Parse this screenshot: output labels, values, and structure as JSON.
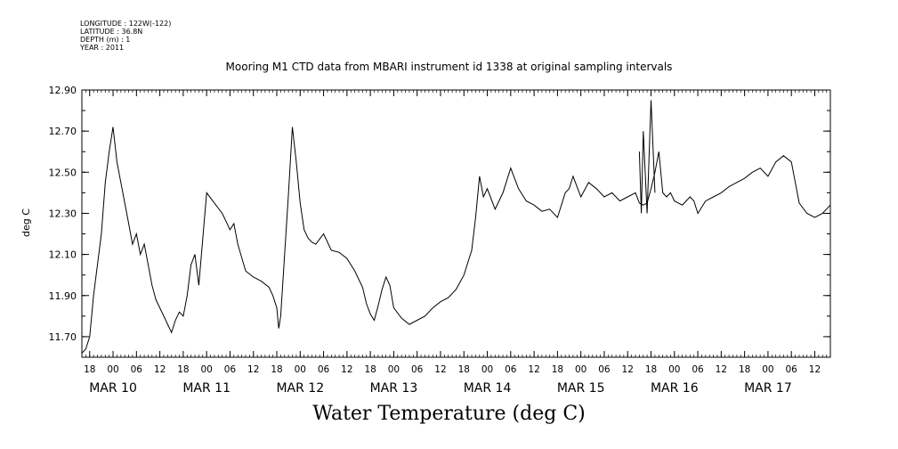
{
  "header": {
    "longitude": "LONGITUDE : 122W(-122)",
    "latitude": "LATITUDE : 36.8N",
    "depth": "DEPTH (m) : 1",
    "year": "YEAR : 2011"
  },
  "chart_data": {
    "type": "line",
    "title": "Mooring M1 CTD data from MBARI instrument id 1338 at original sampling intervals",
    "xlabel": "Water Temperature (deg C)",
    "ylabel": "deg C",
    "ylim": [
      11.6,
      12.9
    ],
    "xlim": [
      "2011-03-09T16:00",
      "2011-03-17T16:00"
    ],
    "yticks": [
      "11.70",
      "11.90",
      "12.10",
      "12.30",
      "12.50",
      "12.70",
      "12.90"
    ],
    "hour_ticks": [
      {
        "t": "2011-03-09T18:00",
        "label": "18"
      },
      {
        "t": "2011-03-10T00:00",
        "label": "00"
      },
      {
        "t": "2011-03-10T06:00",
        "label": "06"
      },
      {
        "t": "2011-03-10T12:00",
        "label": "12"
      },
      {
        "t": "2011-03-10T18:00",
        "label": "18"
      },
      {
        "t": "2011-03-11T00:00",
        "label": "00"
      },
      {
        "t": "2011-03-11T06:00",
        "label": "06"
      },
      {
        "t": "2011-03-11T12:00",
        "label": "12"
      },
      {
        "t": "2011-03-11T18:00",
        "label": "18"
      },
      {
        "t": "2011-03-12T00:00",
        "label": "00"
      },
      {
        "t": "2011-03-12T06:00",
        "label": "06"
      },
      {
        "t": "2011-03-12T12:00",
        "label": "12"
      },
      {
        "t": "2011-03-12T18:00",
        "label": "18"
      },
      {
        "t": "2011-03-13T00:00",
        "label": "00"
      },
      {
        "t": "2011-03-13T06:00",
        "label": "06"
      },
      {
        "t": "2011-03-13T12:00",
        "label": "12"
      },
      {
        "t": "2011-03-13T18:00",
        "label": "18"
      },
      {
        "t": "2011-03-14T00:00",
        "label": "00"
      },
      {
        "t": "2011-03-14T06:00",
        "label": "06"
      },
      {
        "t": "2011-03-14T12:00",
        "label": "12"
      },
      {
        "t": "2011-03-14T18:00",
        "label": "18"
      },
      {
        "t": "2011-03-15T00:00",
        "label": "00"
      },
      {
        "t": "2011-03-15T06:00",
        "label": "06"
      },
      {
        "t": "2011-03-15T12:00",
        "label": "12"
      },
      {
        "t": "2011-03-15T18:00",
        "label": "18"
      },
      {
        "t": "2011-03-16T00:00",
        "label": "00"
      },
      {
        "t": "2011-03-16T06:00",
        "label": "06"
      },
      {
        "t": "2011-03-16T12:00",
        "label": "12"
      },
      {
        "t": "2011-03-16T18:00",
        "label": "18"
      },
      {
        "t": "2011-03-17T00:00",
        "label": "00"
      },
      {
        "t": "2011-03-17T06:00",
        "label": "06"
      },
      {
        "t": "2011-03-17T12:00",
        "label": "12"
      }
    ],
    "date_labels": [
      {
        "t": "2011-03-10T00:00",
        "label": "MAR 10"
      },
      {
        "t": "2011-03-11T00:00",
        "label": "MAR 11"
      },
      {
        "t": "2011-03-12T00:00",
        "label": "MAR 12"
      },
      {
        "t": "2011-03-13T00:00",
        "label": "MAR 13"
      },
      {
        "t": "2011-03-14T00:00",
        "label": "MAR 14"
      },
      {
        "t": "2011-03-15T00:00",
        "label": "MAR 15"
      },
      {
        "t": "2011-03-16T00:00",
        "label": "MAR 16"
      },
      {
        "t": "2011-03-17T00:00",
        "label": "MAR 17"
      }
    ],
    "series": [
      {
        "color": "#000000",
        "x": [
          "2011-03-09T16:00",
          "2011-03-09T17:00",
          "2011-03-09T18:00",
          "2011-03-09T19:00",
          "2011-03-09T20:00",
          "2011-03-09T21:00",
          "2011-03-09T22:00",
          "2011-03-09T23:00",
          "2011-03-10T00:00",
          "2011-03-10T01:00",
          "2011-03-10T02:00",
          "2011-03-10T03:00",
          "2011-03-10T04:00",
          "2011-03-10T05:00",
          "2011-03-10T06:00",
          "2011-03-10T07:00",
          "2011-03-10T08:00",
          "2011-03-10T09:00",
          "2011-03-10T10:00",
          "2011-03-10T11:00",
          "2011-03-10T12:00",
          "2011-03-10T13:00",
          "2011-03-10T14:00",
          "2011-03-10T15:00",
          "2011-03-10T16:00",
          "2011-03-10T17:00",
          "2011-03-10T18:00",
          "2011-03-10T19:00",
          "2011-03-10T20:00",
          "2011-03-10T21:00",
          "2011-03-10T22:00",
          "2011-03-11T00:00",
          "2011-03-11T02:00",
          "2011-03-11T04:00",
          "2011-03-11T05:00",
          "2011-03-11T06:00",
          "2011-03-11T07:00",
          "2011-03-11T08:00",
          "2011-03-11T10:00",
          "2011-03-11T12:00",
          "2011-03-11T14:00",
          "2011-03-11T16:00",
          "2011-03-11T17:00",
          "2011-03-11T18:00",
          "2011-03-11T18:30",
          "2011-03-11T19:00",
          "2011-03-11T20:00",
          "2011-03-11T21:00",
          "2011-03-11T22:00",
          "2011-03-11T23:00",
          "2011-03-12T00:00",
          "2011-03-12T01:00",
          "2011-03-12T02:00",
          "2011-03-12T03:00",
          "2011-03-12T04:00",
          "2011-03-12T06:00",
          "2011-03-12T08:00",
          "2011-03-12T10:00",
          "2011-03-12T12:00",
          "2011-03-12T14:00",
          "2011-03-12T16:00",
          "2011-03-12T17:00",
          "2011-03-12T18:00",
          "2011-03-12T19:00",
          "2011-03-12T20:00",
          "2011-03-12T21:00",
          "2011-03-12T22:00",
          "2011-03-12T23:00",
          "2011-03-13T00:00",
          "2011-03-13T02:00",
          "2011-03-13T04:00",
          "2011-03-13T06:00",
          "2011-03-13T08:00",
          "2011-03-13T10:00",
          "2011-03-13T12:00",
          "2011-03-13T14:00",
          "2011-03-13T16:00",
          "2011-03-13T18:00",
          "2011-03-13T20:00",
          "2011-03-13T21:00",
          "2011-03-13T22:00",
          "2011-03-13T23:00",
          "2011-03-14T00:00",
          "2011-03-14T02:00",
          "2011-03-14T04:00",
          "2011-03-14T06:00",
          "2011-03-14T08:00",
          "2011-03-14T10:00",
          "2011-03-14T12:00",
          "2011-03-14T14:00",
          "2011-03-14T16:00",
          "2011-03-14T18:00",
          "2011-03-14T19:00",
          "2011-03-14T20:00",
          "2011-03-14T21:00",
          "2011-03-14T22:00",
          "2011-03-15T00:00",
          "2011-03-15T02:00",
          "2011-03-15T04:00",
          "2011-03-15T06:00",
          "2011-03-15T08:00",
          "2011-03-15T10:00",
          "2011-03-15T12:00",
          "2011-03-15T14:00",
          "2011-03-15T15:00",
          "2011-03-15T16:00",
          "2011-03-15T17:00",
          "2011-03-15T18:00",
          "2011-03-15T19:00",
          "2011-03-15T20:00",
          "2011-03-15T21:00",
          "2011-03-15T22:00",
          "2011-03-15T23:00",
          "2011-03-16T00:00",
          "2011-03-16T02:00",
          "2011-03-16T04:00",
          "2011-03-16T05:00",
          "2011-03-16T06:00",
          "2011-03-16T07:00",
          "2011-03-16T08:00",
          "2011-03-16T10:00",
          "2011-03-16T12:00",
          "2011-03-16T14:00",
          "2011-03-16T16:00",
          "2011-03-16T18:00",
          "2011-03-16T20:00",
          "2011-03-16T22:00",
          "2011-03-17T00:00",
          "2011-03-17T02:00",
          "2011-03-17T04:00",
          "2011-03-17T06:00",
          "2011-03-17T07:00",
          "2011-03-17T08:00",
          "2011-03-17T10:00",
          "2011-03-17T12:00",
          "2011-03-17T14:00",
          "2011-03-17T15:00",
          "2011-03-17T16:00"
        ],
        "y": [
          11.62,
          11.64,
          11.7,
          11.9,
          12.05,
          12.2,
          12.45,
          12.6,
          12.72,
          12.55,
          12.45,
          12.35,
          12.25,
          12.15,
          12.2,
          12.1,
          12.15,
          12.05,
          11.95,
          11.88,
          11.84,
          11.8,
          11.76,
          11.72,
          11.78,
          11.82,
          11.8,
          11.9,
          12.05,
          12.1,
          11.95,
          12.4,
          12.35,
          12.3,
          12.26,
          12.22,
          12.25,
          12.15,
          12.02,
          11.99,
          11.97,
          11.94,
          11.9,
          11.84,
          11.74,
          11.8,
          12.1,
          12.4,
          12.72,
          12.55,
          12.35,
          12.22,
          12.18,
          12.16,
          12.15,
          12.2,
          12.12,
          12.11,
          12.08,
          12.02,
          11.94,
          11.86,
          11.81,
          11.78,
          11.85,
          11.93,
          11.99,
          11.95,
          11.84,
          11.79,
          11.76,
          11.78,
          11.8,
          11.84,
          11.87,
          11.89,
          11.93,
          12.0,
          12.12,
          12.28,
          12.48,
          12.38,
          12.42,
          12.32,
          12.4,
          12.52,
          12.42,
          12.36,
          12.34,
          12.31,
          12.32,
          12.28,
          12.34,
          12.4,
          12.42,
          12.48,
          12.38,
          12.45,
          12.42,
          12.38,
          12.4,
          12.36,
          12.38,
          12.4,
          12.35,
          12.34,
          12.35,
          12.42,
          12.5,
          12.6,
          12.4,
          12.38,
          12.4,
          12.36,
          12.34,
          12.38,
          12.36,
          12.3,
          12.33,
          12.36,
          12.38,
          12.4,
          12.43,
          12.45,
          12.47,
          12.5,
          12.52,
          12.48,
          12.55,
          12.58,
          12.55,
          12.45,
          12.35,
          12.3,
          12.28,
          12.3,
          12.32,
          12.34
        ],
        "spikes": [
          {
            "t": "2011-03-15T15:00",
            "y": 12.6
          },
          {
            "t": "2011-03-15T15:30",
            "y": 12.3
          },
          {
            "t": "2011-03-15T16:00",
            "y": 12.7
          },
          {
            "t": "2011-03-15T17:00",
            "y": 12.3
          },
          {
            "t": "2011-03-15T18:00",
            "y": 12.85
          },
          {
            "t": "2011-03-15T19:00",
            "y": 12.4
          }
        ]
      }
    ]
  }
}
